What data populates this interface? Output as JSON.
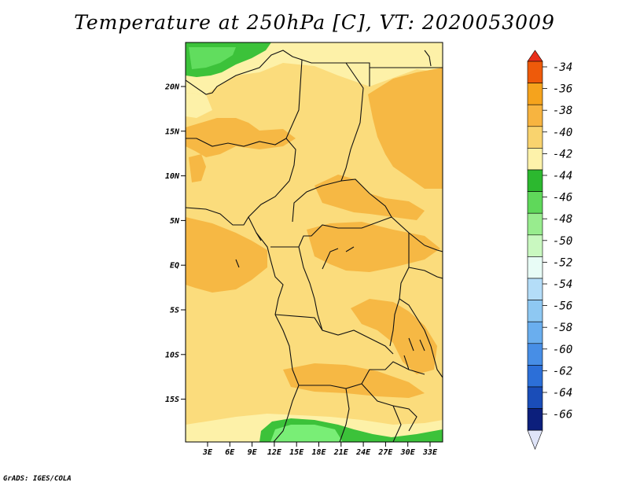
{
  "title": "Temperature at 250hPa [C], VT: 2020053009",
  "credit": "GrADS: IGES/COLA",
  "lat_labels": [
    "20N",
    "15N",
    "10N",
    "5N",
    "EQ",
    "5S",
    "10S",
    "15S"
  ],
  "lon_labels": [
    "3E",
    "6E",
    "9E",
    "12E",
    "15E",
    "18E",
    "21E",
    "24E",
    "27E",
    "30E",
    "33E"
  ],
  "colorbar": {
    "labels": [
      "-34",
      "-36",
      "-38",
      "-40",
      "-42",
      "-44",
      "-46",
      "-48",
      "-50",
      "-52",
      "-54",
      "-56",
      "-58",
      "-60",
      "-62",
      "-64",
      "-66"
    ],
    "colors": [
      "#ee5a0a",
      "#f5a31d",
      "#f7b440",
      "#f9d36e",
      "#fdf2aa",
      "#2cb82f",
      "#5fd85a",
      "#98ec8e",
      "#c9f8c0",
      "#e8fcf6",
      "#b4ddf8",
      "#8ec8f2",
      "#6aaeee",
      "#478ee6",
      "#2c6fd8",
      "#1a4db8",
      "#0c1f7c"
    ],
    "top_arrow_color": "#e8301b",
    "bottom_arrow_color": "#dfe4f8"
  },
  "map_colors": {
    "background": "#fbdc7c",
    "warm_patch": "#f6b844",
    "pale": "#fdf1a8",
    "green_dark": "#3cc23a",
    "green_light": "#79ee76",
    "border": "#111111"
  }
}
